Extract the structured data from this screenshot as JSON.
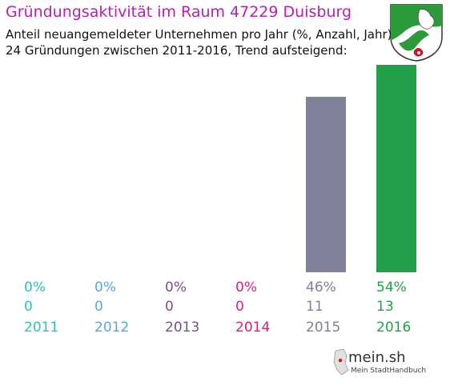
{
  "title": "Gründungsaktivität im Raum 47229 Duisburg",
  "subtitle_1": "Anteil neuangemeldeter Unternehmen pro Jahr (%, Anzahl, Jahr)",
  "subtitle_2": "24 Gründungen zwischen 2011-2016, Trend aufsteigend:",
  "colors": {
    "title": "#b620b8",
    "years": [
      "#2ec4b6",
      "#5aa7e0",
      "#7b4f8e",
      "#e01e78",
      "#7f8199",
      "#23a04a"
    ]
  },
  "chart_data": {
    "type": "bar",
    "categories": [
      "2011",
      "2012",
      "2013",
      "2014",
      "2015",
      "2016"
    ],
    "values": [
      0,
      0,
      0,
      0,
      11,
      13
    ],
    "percent_labels": [
      "0%",
      "0%",
      "0%",
      "0%",
      "46%",
      "54%"
    ],
    "count_labels": [
      "0",
      "0",
      "0",
      "0",
      "11",
      "13"
    ],
    "ylim": [
      0,
      13
    ],
    "grid": false
  },
  "logo": {
    "name": "mein.sh",
    "tagline": "Mein StadtHandbuch"
  },
  "icons": {
    "crest": "nrw-crest-icon"
  }
}
